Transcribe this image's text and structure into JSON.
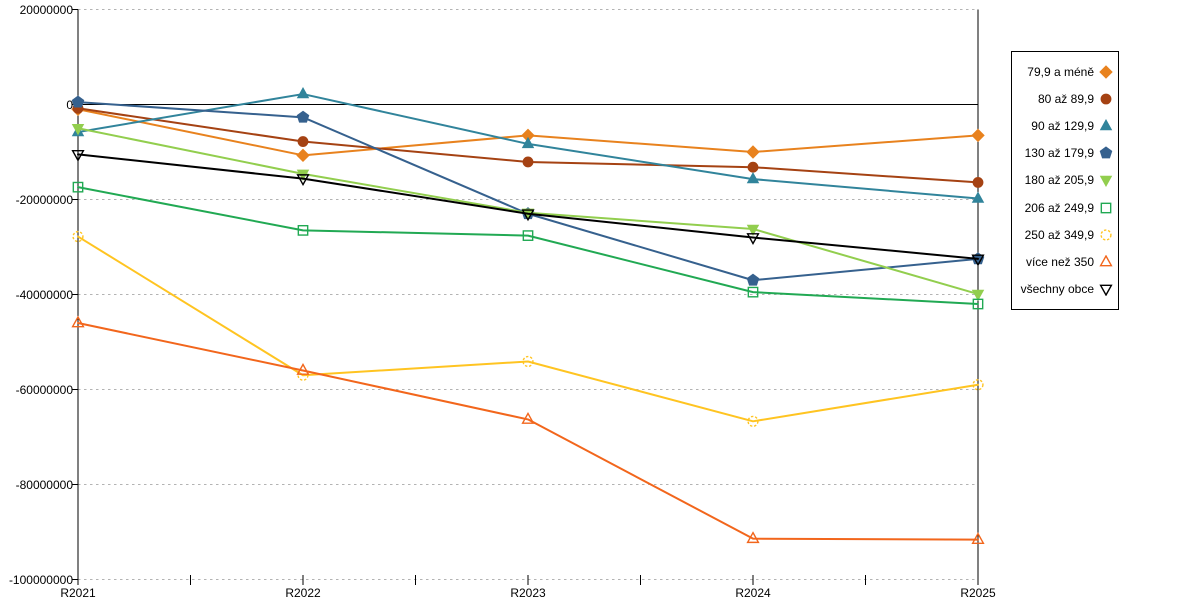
{
  "chart_data": {
    "type": "line",
    "x_categories": [
      "R2021",
      "R2022",
      "R2023",
      "R2024",
      "R2025"
    ],
    "y_ticks": [
      20000000,
      0,
      -20000000,
      -40000000,
      -60000000,
      -80000000,
      -100000000
    ],
    "ylim": [
      -100000000,
      20000000
    ],
    "xlabel": "",
    "ylabel": "",
    "title": "",
    "grid": "dotted-horizontal",
    "legend_position": "right",
    "axis_color": "#000000",
    "gridline_color": "#b3b3b3",
    "series": [
      {
        "name": "79,9 a méně",
        "color": "#E8821E",
        "marker": "diamond",
        "fill": "solid",
        "values": [
          -1000000,
          -10700000,
          -6500000,
          -10000000,
          -6500000
        ]
      },
      {
        "name": "80 až 89,9",
        "color": "#A54213",
        "marker": "circle",
        "fill": "solid",
        "values": [
          -800000,
          -7800000,
          -12100000,
          -13200000,
          -16400000
        ]
      },
      {
        "name": "90 až 129,9",
        "color": "#31849B",
        "marker": "triangle-up",
        "fill": "solid",
        "values": [
          -5800000,
          2200000,
          -8300000,
          -15700000,
          -19800000
        ]
      },
      {
        "name": "130 až 179,9",
        "color": "#36618E",
        "marker": "pentagon",
        "fill": "solid",
        "values": [
          500000,
          -2700000,
          -23000000,
          -37000000,
          -32500000
        ]
      },
      {
        "name": "180 až 205,9",
        "color": "#92CE4E",
        "marker": "triangle-down",
        "fill": "solid",
        "values": [
          -5000000,
          -14600000,
          -22800000,
          -26200000,
          -39900000
        ]
      },
      {
        "name": "206 až 249,9",
        "color": "#21A953",
        "marker": "square",
        "fill": "hollow",
        "values": [
          -17400000,
          -26500000,
          -27600000,
          -39500000,
          -42000000
        ]
      },
      {
        "name": "250 až 349,9",
        "color": "#FFC421",
        "marker": "circle-dashed",
        "fill": "hollow",
        "values": [
          -27800000,
          -57000000,
          -54100000,
          -66700000,
          -59000000
        ]
      },
      {
        "name": "více než 350",
        "color": "#F2661C",
        "marker": "triangle-up",
        "fill": "hollow",
        "values": [
          -46000000,
          -56000000,
          -66300000,
          -91400000,
          -91600000
        ]
      },
      {
        "name": "všechny obce",
        "color": "#000000",
        "marker": "triangle-down",
        "fill": "hollow",
        "values": [
          -10500000,
          -15600000,
          -23000000,
          -28000000,
          -32500000
        ]
      }
    ]
  }
}
